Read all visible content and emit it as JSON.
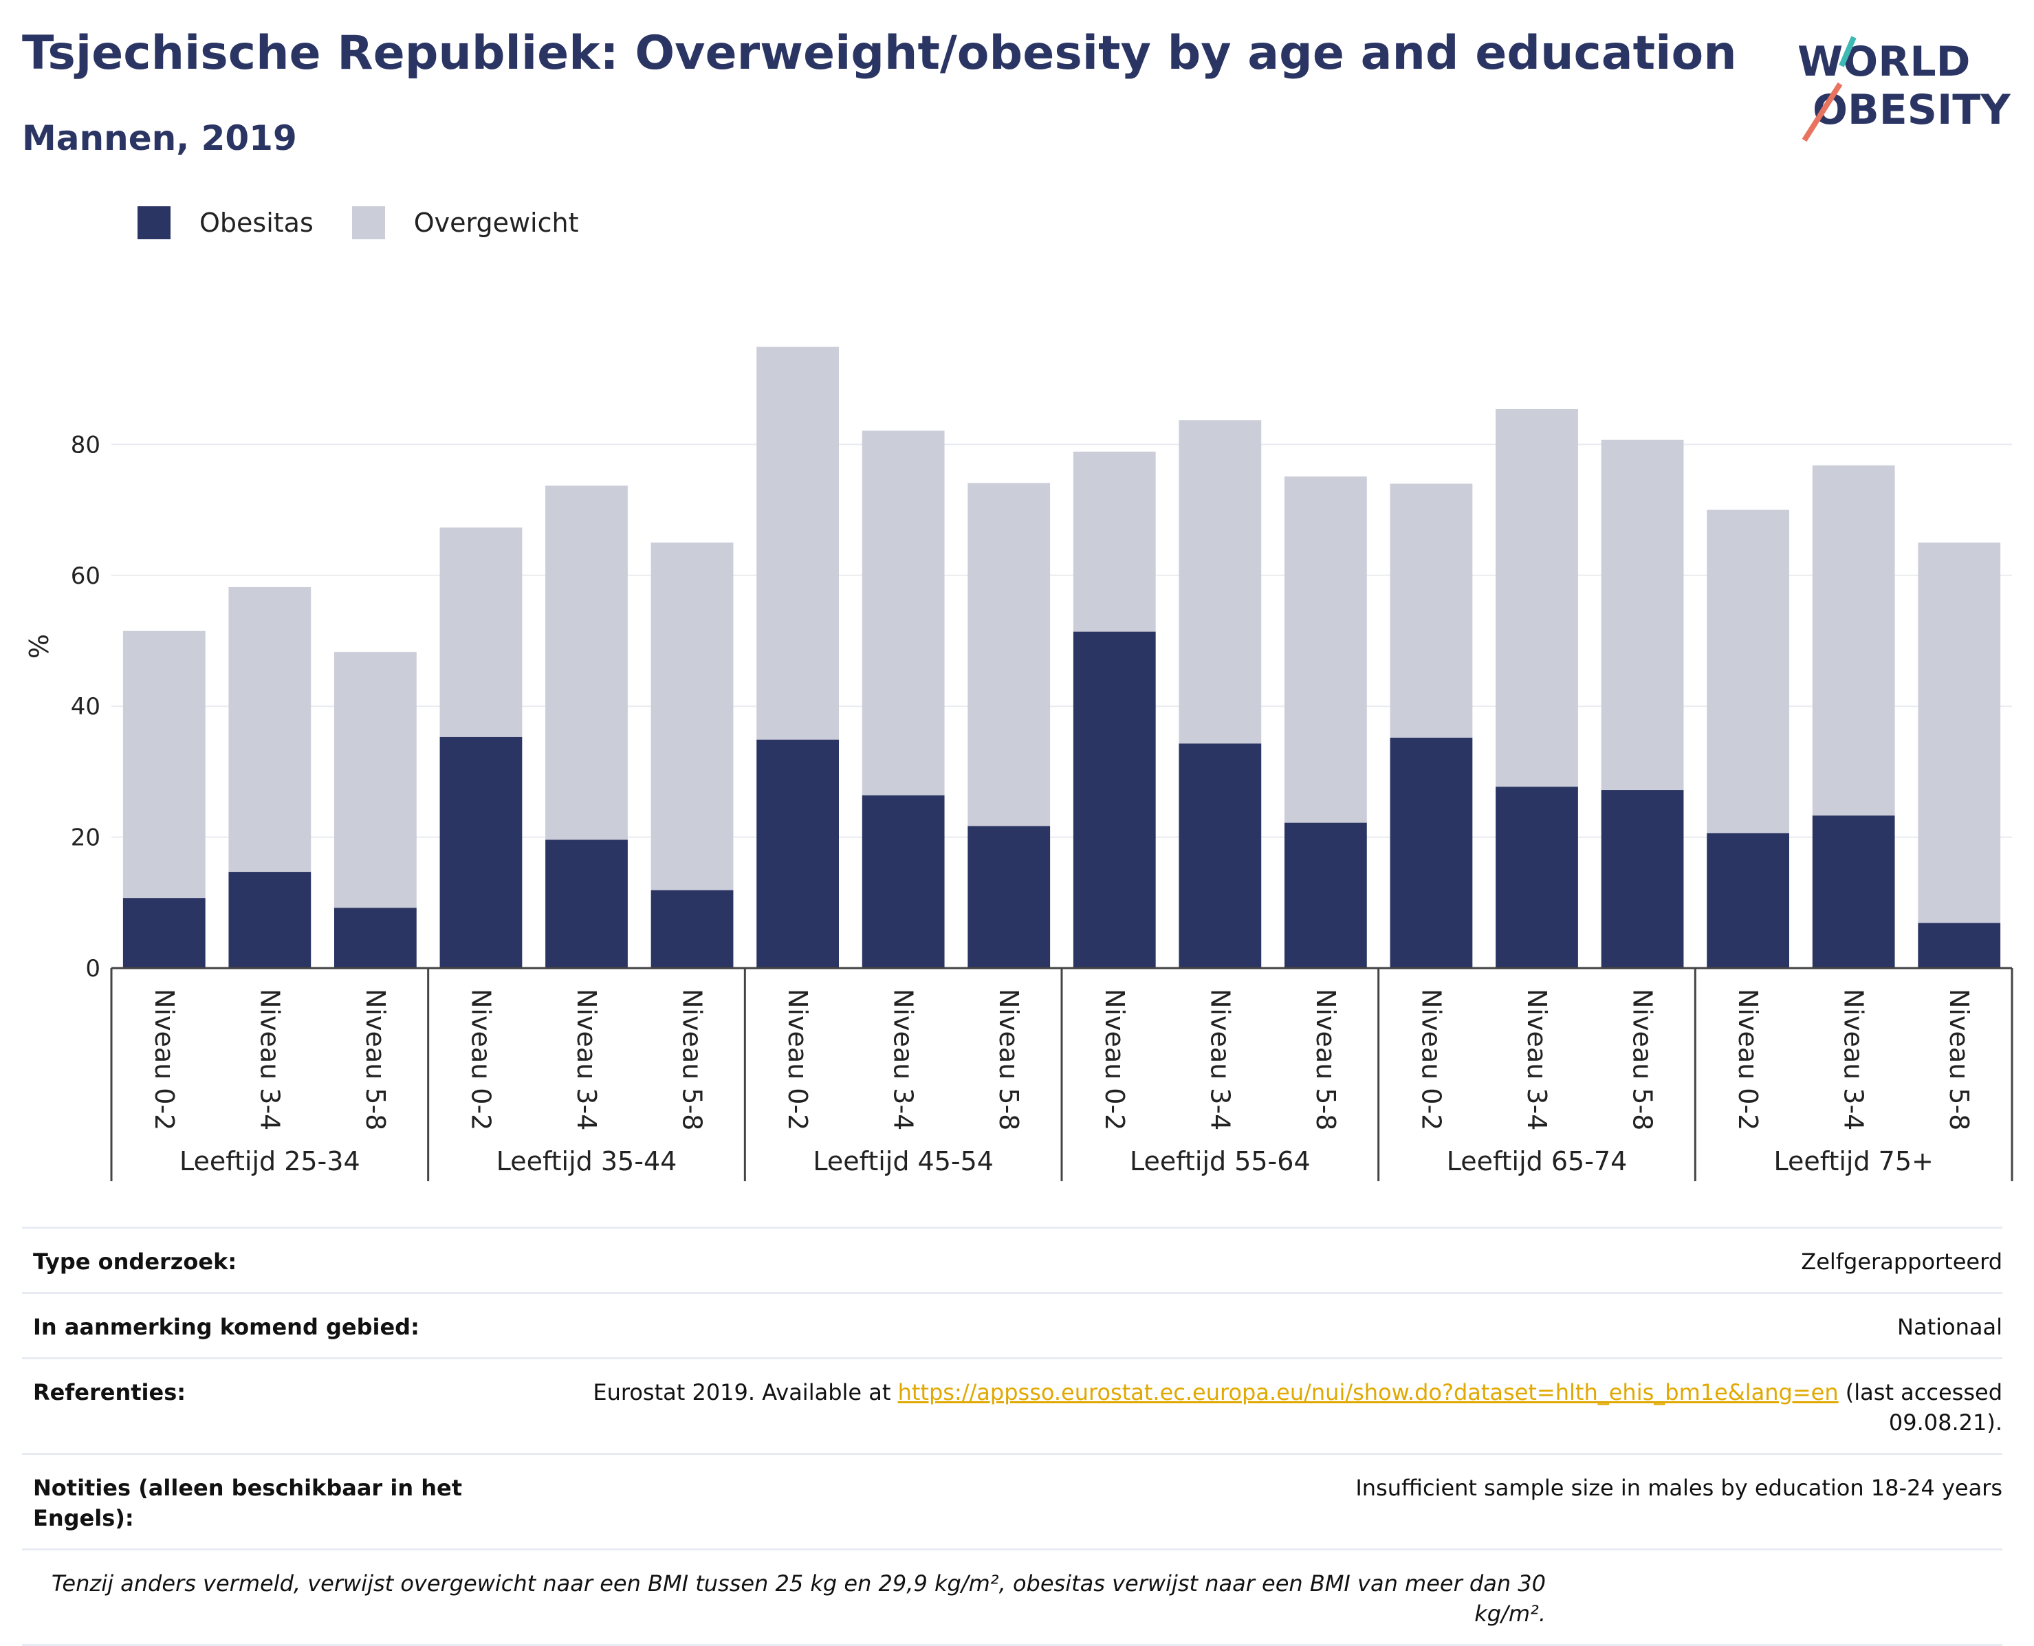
{
  "header": {
    "title": "Tsjechische Republiek: Overweight/obesity by age and education",
    "subtitle": "Mannen, 2019"
  },
  "logo": {
    "line1": "WORLD",
    "line2": "OBESITY"
  },
  "colors": {
    "obesity": "#2b3563",
    "overweight": "#cbcdd9",
    "title": "#2b3563",
    "link": "#e0a800",
    "logo_teal": "#3fb9b3",
    "logo_coral": "#e8735f"
  },
  "chart_data": {
    "type": "bar",
    "stacked": true,
    "ylabel": "%",
    "ylim": [
      0,
      100
    ],
    "yticks": [
      0,
      20,
      40,
      60,
      80
    ],
    "grid": true,
    "legend_position": "top-left",
    "groups": [
      "Leeftijd 25-34",
      "Leeftijd 35-44",
      "Leeftijd 45-54",
      "Leeftijd 55-64",
      "Leeftijd 65-74",
      "Leeftijd 75+"
    ],
    "subcategories": [
      "Niveau 0-2",
      "Niveau 3-4",
      "Niveau 5-8"
    ],
    "series": [
      {
        "name": "Obesitas",
        "values": [
          10.7,
          14.7,
          9.2,
          35.3,
          19.6,
          11.9,
          34.9,
          26.4,
          21.7,
          51.4,
          34.3,
          22.2,
          35.2,
          27.7,
          27.2,
          20.6,
          23.3,
          6.9
        ]
      },
      {
        "name": "Overgewicht",
        "values": [
          40.8,
          43.5,
          39.1,
          32.0,
          54.1,
          53.1,
          60.0,
          55.7,
          52.4,
          27.5,
          49.4,
          52.9,
          38.8,
          57.7,
          53.5,
          49.4,
          53.5,
          58.1
        ]
      }
    ]
  },
  "info": {
    "rows": [
      {
        "label": "Type onderzoek:",
        "value": "Zelfgerapporteerd"
      },
      {
        "label": "In aanmerking komend gebied:",
        "value": "Nationaal"
      },
      {
        "label": "Referenties:",
        "value_before": "Eurostat 2019. Available at ",
        "link": "https://appsso.eurostat.ec.europa.eu/nui/show.do?dataset=hlth_ehis_bm1e&lang=en",
        "value_after": " (last accessed 09.08.21)."
      },
      {
        "label": "Notities (alleen beschikbaar in het Engels):",
        "value": "Insufficient sample size in males by education 18-24 years"
      }
    ],
    "footnote": "Tenzij anders vermeld, verwijst overgewicht naar een BMI tussen 25 kg en 29,9 kg/m², obesitas verwijst naar een BMI van meer dan 30 kg/m²."
  }
}
